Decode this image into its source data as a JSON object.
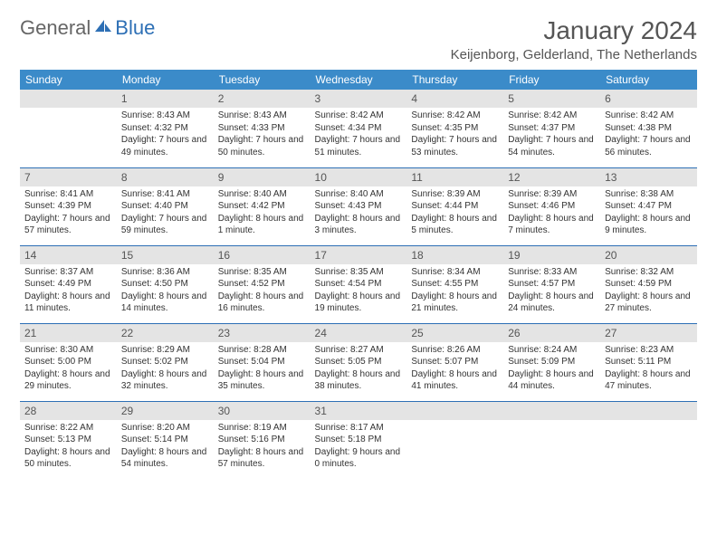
{
  "brand": {
    "part1": "General",
    "part2": "Blue"
  },
  "title": "January 2024",
  "location": "Keijenborg, Gelderland, The Netherlands",
  "colors": {
    "header_bg": "#3b8bc9",
    "header_text": "#ffffff",
    "daynum_bg": "#e4e4e4",
    "row_border": "#2d6fb5",
    "text": "#333333",
    "title_text": "#555555"
  },
  "weekdays": [
    "Sunday",
    "Monday",
    "Tuesday",
    "Wednesday",
    "Thursday",
    "Friday",
    "Saturday"
  ],
  "startOffset": 1,
  "days": [
    {
      "n": 1,
      "sunrise": "8:43 AM",
      "sunset": "4:32 PM",
      "daylight": "7 hours and 49 minutes."
    },
    {
      "n": 2,
      "sunrise": "8:43 AM",
      "sunset": "4:33 PM",
      "daylight": "7 hours and 50 minutes."
    },
    {
      "n": 3,
      "sunrise": "8:42 AM",
      "sunset": "4:34 PM",
      "daylight": "7 hours and 51 minutes."
    },
    {
      "n": 4,
      "sunrise": "8:42 AM",
      "sunset": "4:35 PM",
      "daylight": "7 hours and 53 minutes."
    },
    {
      "n": 5,
      "sunrise": "8:42 AM",
      "sunset": "4:37 PM",
      "daylight": "7 hours and 54 minutes."
    },
    {
      "n": 6,
      "sunrise": "8:42 AM",
      "sunset": "4:38 PM",
      "daylight": "7 hours and 56 minutes."
    },
    {
      "n": 7,
      "sunrise": "8:41 AM",
      "sunset": "4:39 PM",
      "daylight": "7 hours and 57 minutes."
    },
    {
      "n": 8,
      "sunrise": "8:41 AM",
      "sunset": "4:40 PM",
      "daylight": "7 hours and 59 minutes."
    },
    {
      "n": 9,
      "sunrise": "8:40 AM",
      "sunset": "4:42 PM",
      "daylight": "8 hours and 1 minute."
    },
    {
      "n": 10,
      "sunrise": "8:40 AM",
      "sunset": "4:43 PM",
      "daylight": "8 hours and 3 minutes."
    },
    {
      "n": 11,
      "sunrise": "8:39 AM",
      "sunset": "4:44 PM",
      "daylight": "8 hours and 5 minutes."
    },
    {
      "n": 12,
      "sunrise": "8:39 AM",
      "sunset": "4:46 PM",
      "daylight": "8 hours and 7 minutes."
    },
    {
      "n": 13,
      "sunrise": "8:38 AM",
      "sunset": "4:47 PM",
      "daylight": "8 hours and 9 minutes."
    },
    {
      "n": 14,
      "sunrise": "8:37 AM",
      "sunset": "4:49 PM",
      "daylight": "8 hours and 11 minutes."
    },
    {
      "n": 15,
      "sunrise": "8:36 AM",
      "sunset": "4:50 PM",
      "daylight": "8 hours and 14 minutes."
    },
    {
      "n": 16,
      "sunrise": "8:35 AM",
      "sunset": "4:52 PM",
      "daylight": "8 hours and 16 minutes."
    },
    {
      "n": 17,
      "sunrise": "8:35 AM",
      "sunset": "4:54 PM",
      "daylight": "8 hours and 19 minutes."
    },
    {
      "n": 18,
      "sunrise": "8:34 AM",
      "sunset": "4:55 PM",
      "daylight": "8 hours and 21 minutes."
    },
    {
      "n": 19,
      "sunrise": "8:33 AM",
      "sunset": "4:57 PM",
      "daylight": "8 hours and 24 minutes."
    },
    {
      "n": 20,
      "sunrise": "8:32 AM",
      "sunset": "4:59 PM",
      "daylight": "8 hours and 27 minutes."
    },
    {
      "n": 21,
      "sunrise": "8:30 AM",
      "sunset": "5:00 PM",
      "daylight": "8 hours and 29 minutes."
    },
    {
      "n": 22,
      "sunrise": "8:29 AM",
      "sunset": "5:02 PM",
      "daylight": "8 hours and 32 minutes."
    },
    {
      "n": 23,
      "sunrise": "8:28 AM",
      "sunset": "5:04 PM",
      "daylight": "8 hours and 35 minutes."
    },
    {
      "n": 24,
      "sunrise": "8:27 AM",
      "sunset": "5:05 PM",
      "daylight": "8 hours and 38 minutes."
    },
    {
      "n": 25,
      "sunrise": "8:26 AM",
      "sunset": "5:07 PM",
      "daylight": "8 hours and 41 minutes."
    },
    {
      "n": 26,
      "sunrise": "8:24 AM",
      "sunset": "5:09 PM",
      "daylight": "8 hours and 44 minutes."
    },
    {
      "n": 27,
      "sunrise": "8:23 AM",
      "sunset": "5:11 PM",
      "daylight": "8 hours and 47 minutes."
    },
    {
      "n": 28,
      "sunrise": "8:22 AM",
      "sunset": "5:13 PM",
      "daylight": "8 hours and 50 minutes."
    },
    {
      "n": 29,
      "sunrise": "8:20 AM",
      "sunset": "5:14 PM",
      "daylight": "8 hours and 54 minutes."
    },
    {
      "n": 30,
      "sunrise": "8:19 AM",
      "sunset": "5:16 PM",
      "daylight": "8 hours and 57 minutes."
    },
    {
      "n": 31,
      "sunrise": "8:17 AM",
      "sunset": "5:18 PM",
      "daylight": "9 hours and 0 minutes."
    }
  ],
  "labels": {
    "sunrise": "Sunrise:",
    "sunset": "Sunset:",
    "daylight": "Daylight:"
  }
}
